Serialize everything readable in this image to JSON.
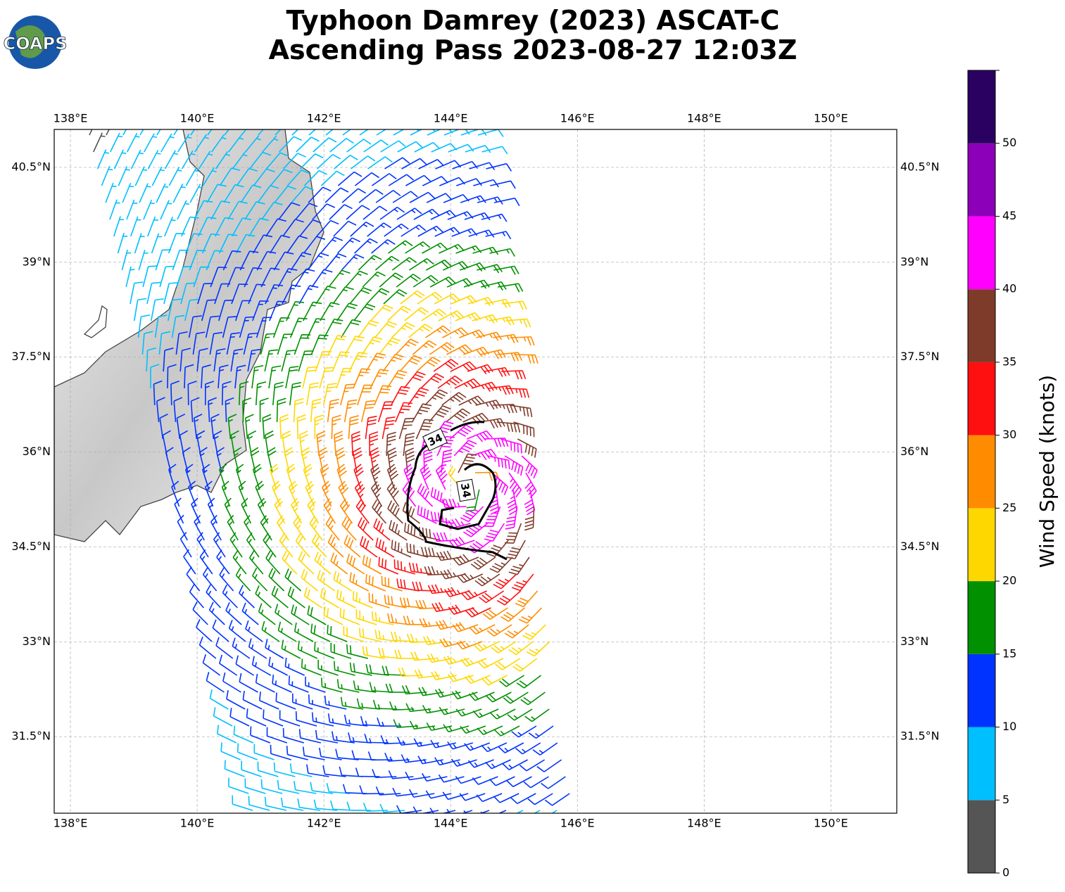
{
  "logo": "COAPS",
  "title": [
    "Typhoon Damrey (2023) ASCAT-C",
    "Ascending Pass 2023-08-27 12:03Z"
  ],
  "map": {
    "xlim": [
      137.744,
      151.04
    ],
    "ylim": [
      30.29,
      41.1
    ],
    "lon_ticks": [
      {
        "value": 138,
        "label": "138°E"
      },
      {
        "value": 140,
        "label": "140°E"
      },
      {
        "value": 142,
        "label": "142°E"
      },
      {
        "value": 144,
        "label": "144°E"
      },
      {
        "value": 146,
        "label": "146°E"
      },
      {
        "value": 148,
        "label": "148°E"
      },
      {
        "value": 150,
        "label": "150°E"
      }
    ],
    "lat_ticks": [
      {
        "value": 40.5,
        "label": "40.5°N"
      },
      {
        "value": 39,
        "label": "39°N"
      },
      {
        "value": 37.5,
        "label": "37.5°N"
      },
      {
        "value": 36,
        "label": "36°N"
      },
      {
        "value": 34.5,
        "label": "34.5°N"
      },
      {
        "value": 33,
        "label": "33°N"
      },
      {
        "value": 31.5,
        "label": "31.5°N"
      }
    ],
    "contour_labels": [
      "34",
      "34"
    ]
  },
  "colorbar": {
    "label": "Wind Speed (knots)",
    "lim": [
      0,
      55
    ],
    "ticks": [
      0,
      5,
      10,
      15,
      20,
      25,
      30,
      35,
      40,
      45,
      50
    ],
    "colors": [
      "#555555",
      "#00bfff",
      "#0033ff",
      "#009000",
      "#ffd700",
      "#ff8c00",
      "#ff1010",
      "#7f3b2a",
      "#ff00ff",
      "#8b00b8",
      "#2a0060"
    ]
  }
}
